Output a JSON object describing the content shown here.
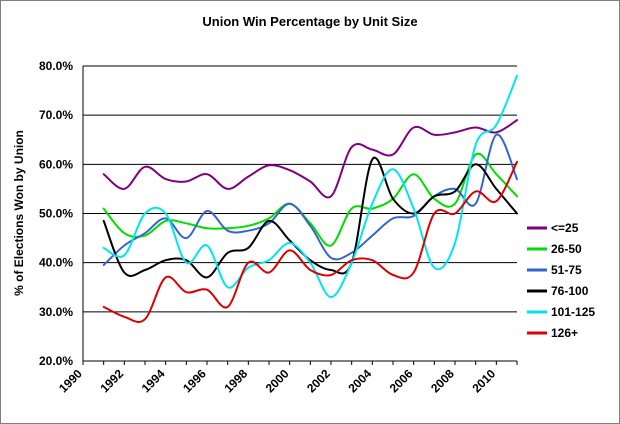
{
  "chart_data": {
    "type": "line",
    "title": "Union Win Percentage by Unit Size",
    "xlabel": "",
    "ylabel": "% of Elections Won by Union",
    "xlim": [
      1990,
      2011
    ],
    "ylim": [
      20,
      80
    ],
    "x_ticks": [
      1990,
      1992,
      1994,
      1996,
      1998,
      2000,
      2002,
      2004,
      2006,
      2008,
      2010
    ],
    "x_tick_labels": [
      "1990",
      "1992",
      "1994",
      "1996",
      "1998",
      "2000",
      "2002",
      "2004",
      "2006",
      "2008",
      "2010"
    ],
    "y_ticks": [
      20,
      30,
      40,
      50,
      60,
      70,
      80
    ],
    "y_tick_labels": [
      "20.0%",
      "30.0%",
      "40.0%",
      "50.0%",
      "60.0%",
      "70.0%",
      "80.0%"
    ],
    "grid": "horizontal",
    "legend_position": "right",
    "x": [
      1991,
      1992,
      1993,
      1994,
      1995,
      1996,
      1997,
      1998,
      1999,
      2000,
      2001,
      2002,
      2003,
      2004,
      2005,
      2006,
      2007,
      2008,
      2009,
      2010,
      2011
    ],
    "series": [
      {
        "name": "<=25",
        "color": "#800080",
        "values": [
          58.0,
          55.0,
          59.5,
          57.0,
          56.5,
          58.0,
          55.0,
          57.5,
          59.8,
          58.8,
          56.5,
          53.5,
          63.5,
          63.0,
          62.0,
          67.5,
          66.0,
          66.5,
          67.5,
          66.5,
          69.0
        ]
      },
      {
        "name": "26-50",
        "color": "#00dd00",
        "values": [
          51.0,
          46.0,
          45.5,
          48.5,
          48.0,
          47.0,
          47.0,
          47.5,
          49.0,
          52.0,
          48.0,
          43.5,
          51.0,
          51.0,
          53.0,
          58.0,
          53.0,
          52.0,
          62.0,
          58.0,
          53.5
        ]
      },
      {
        "name": "51-75",
        "color": "#3366cc",
        "values": [
          39.5,
          43.5,
          46.0,
          49.0,
          45.0,
          50.5,
          46.5,
          46.5,
          48.0,
          52.0,
          47.5,
          41.0,
          42.0,
          45.5,
          49.0,
          49.5,
          53.5,
          55.0,
          52.0,
          66.0,
          57.0
        ]
      },
      {
        "name": "76-100",
        "color": "#000000",
        "values": [
          48.5,
          38.0,
          38.5,
          40.5,
          40.5,
          37.0,
          42.0,
          43.0,
          48.5,
          44.5,
          40.5,
          38.5,
          40.0,
          61.0,
          53.0,
          50.0,
          53.5,
          54.5,
          60.0,
          55.0,
          50.0
        ]
      },
      {
        "name": "101-125",
        "color": "#00e5ee",
        "values": [
          43.0,
          41.5,
          50.0,
          50.0,
          40.0,
          43.5,
          35.0,
          39.0,
          40.5,
          44.0,
          40.0,
          33.0,
          40.0,
          52.0,
          59.0,
          51.0,
          39.0,
          44.0,
          64.0,
          68.0,
          78.0
        ]
      },
      {
        "name": "126+",
        "color": "#dd0000",
        "values": [
          31.0,
          29.0,
          28.5,
          37.0,
          34.0,
          34.5,
          31.0,
          40.0,
          38.0,
          42.5,
          38.5,
          37.5,
          40.5,
          40.5,
          37.5,
          38.0,
          50.0,
          50.0,
          54.5,
          52.5,
          60.5
        ]
      }
    ]
  }
}
